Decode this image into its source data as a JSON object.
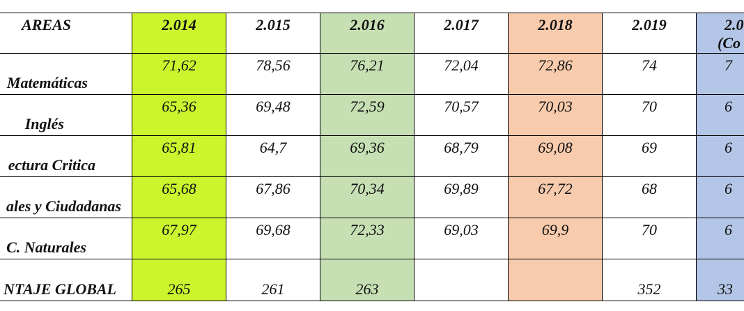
{
  "table": {
    "header": [
      "AREAS",
      "2.014",
      "2.015",
      "2.016",
      "2.017",
      "2.018",
      "2.019",
      "2.0",
      "(Co"
    ],
    "rows": [
      {
        "label": "Matemáticas",
        "cells": [
          "71,62",
          "78,56",
          "76,21",
          "72,04",
          "72,86",
          "74",
          "7"
        ]
      },
      {
        "label": "Inglés",
        "cells": [
          "65,36",
          "69,48",
          "72,59",
          "70,57",
          "70,03",
          "70",
          "6"
        ]
      },
      {
        "label": "ectura Critica",
        "cells": [
          "65,81",
          "64,7",
          "69,36",
          "68,79",
          "69,08",
          "69",
          "6"
        ]
      },
      {
        "label": "ales y Ciudadanas",
        "cells": [
          "65,68",
          "67,86",
          "70,34",
          "69,89",
          "67,72",
          "68",
          "6"
        ]
      },
      {
        "label": "C. Naturales",
        "cells": [
          "67,97",
          "69,68",
          "72,33",
          "69,03",
          "69,9",
          "70",
          "6"
        ]
      },
      {
        "label": "NTAJE GLOBAL",
        "cells": [
          "265",
          "261",
          "263",
          "",
          "",
          "352",
          "33"
        ]
      }
    ]
  }
}
